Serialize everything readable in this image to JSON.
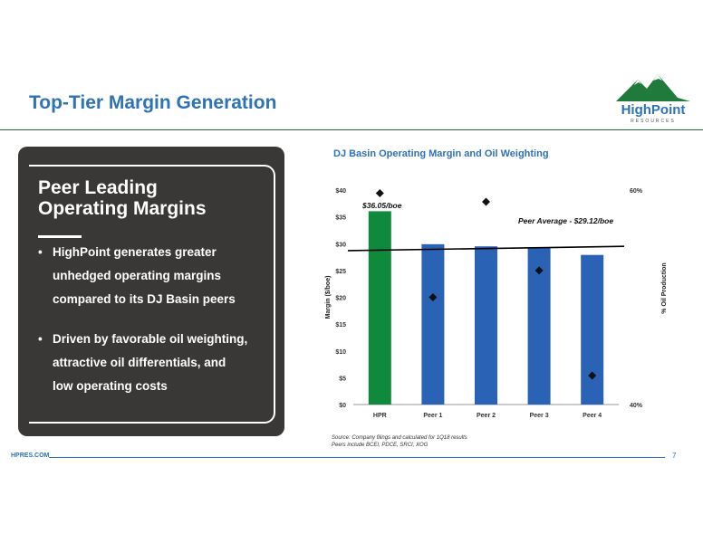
{
  "slide": {
    "title": "Top-Tier Margin Generation",
    "page_number": "7",
    "footer_url": "HPRES.COM"
  },
  "logo": {
    "word": "HighPoint",
    "sub": "RESOURCES"
  },
  "panel": {
    "title_line1": "Peer Leading",
    "title_line2": "Operating Margins",
    "bullets": [
      {
        "lines": [
          "HighPoint generates greater",
          "unhedged operating margins",
          "compared to its DJ Basin peers"
        ]
      },
      {
        "lines": [
          "Driven by favorable oil weighting,",
          "attractive oil differentials, and",
          "low operating costs"
        ]
      }
    ]
  },
  "source": {
    "line1": "Source:  Company filings and calculated for 1Q18 results",
    "line2": "Peers include BCEI, PDCE, SRCI, XOG"
  },
  "colors": {
    "hpr_bar": "#0f8a3c",
    "peer_bar": "#2a62b5",
    "marker": "#111111",
    "title_blue": "#2e72b8"
  },
  "chart_data": {
    "type": "bar",
    "title": "DJ Basin Operating Margin and Oil Weighting",
    "categories": [
      "HPR",
      "Peer 1",
      "Peer 2",
      "Peer 3",
      "Peer 4"
    ],
    "ylabel": "Margin ($/boe)",
    "y2label": "% Oil Production",
    "ylim": [
      0,
      40
    ],
    "yticks": [
      "$0",
      "$5",
      "$10",
      "$15",
      "$20",
      "$25",
      "$30",
      "$35",
      "$40"
    ],
    "y2lim": [
      40,
      60
    ],
    "y2ticks": [
      "40%",
      "60%"
    ],
    "series": [
      {
        "name": "",
        "type": "bar",
        "values": [
          36.05,
          29.9,
          29.5,
          29.3,
          27.9
        ]
      },
      {
        "name": "",
        "type": "scatter",
        "axis": "right",
        "values": [
          59.7,
          50.0,
          58.9,
          52.5,
          42.7
        ]
      }
    ],
    "reference_line": {
      "label": "Peer Average - $29.12/boe",
      "start": 28.7,
      "end": 29.5
    },
    "annotations": [
      {
        "text": "$36.05/boe"
      }
    ]
  }
}
